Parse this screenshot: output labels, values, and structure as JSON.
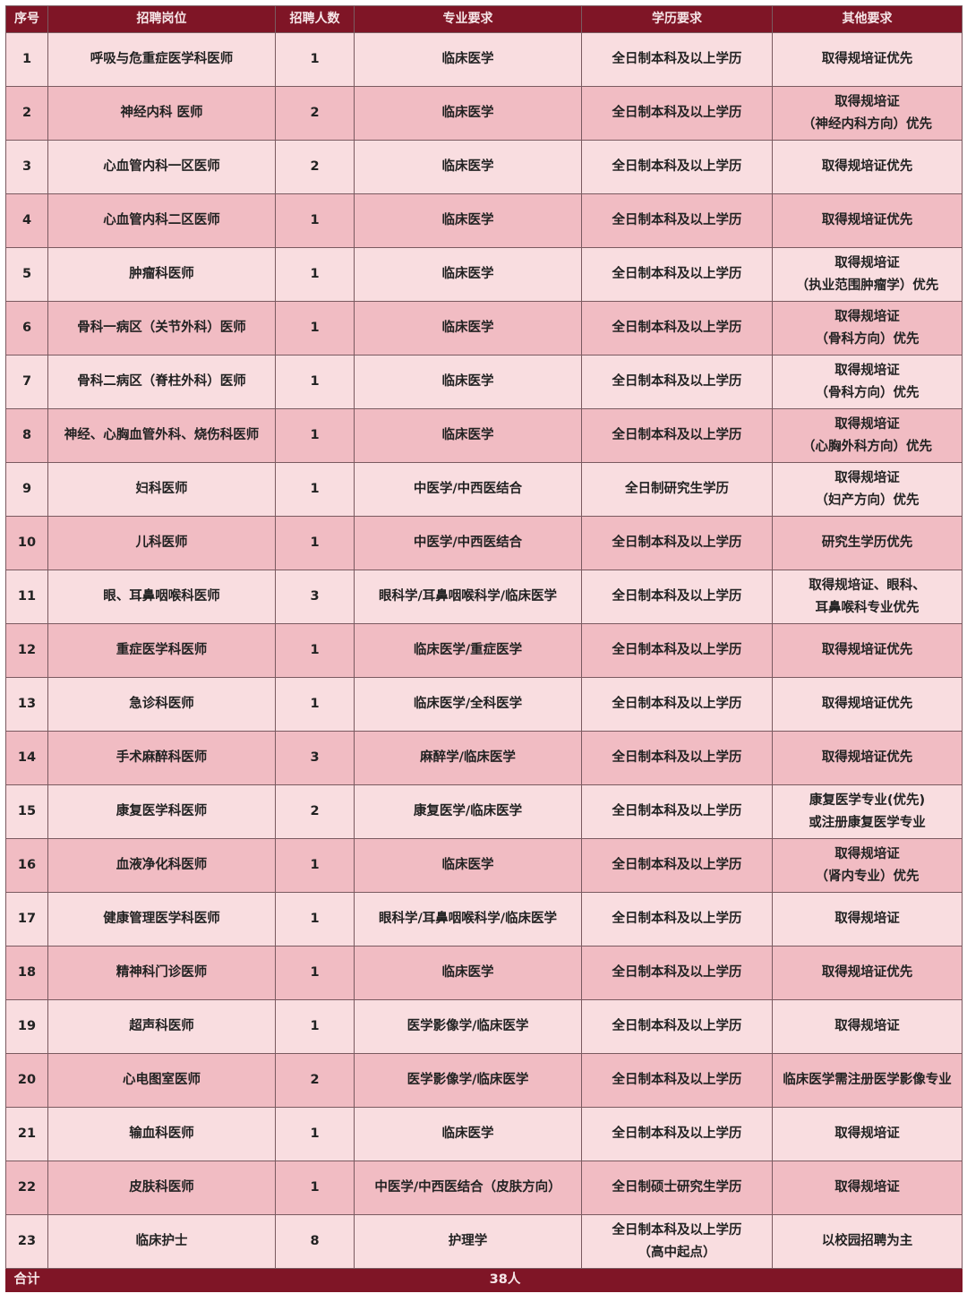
{
  "headers": [
    "序号",
    "招聘岗位",
    "招聘人数",
    "专业要求",
    "学历要求",
    "其他要求"
  ],
  "rows": [
    [
      "1",
      "呼吸与危重症医学科医师",
      "1",
      "临床医学",
      "全日制本科及以上学历",
      "取得规培证优先"
    ],
    [
      "2",
      "神经内科 医师",
      "2",
      "临床医学",
      "全日制本科及以上学历",
      "取得规培证\n（神经内科方向）优先"
    ],
    [
      "3",
      "心血管内科一区医师",
      "2",
      "临床医学",
      "全日制本科及以上学历",
      "取得规培证优先"
    ],
    [
      "4",
      "心血管内科二区医师",
      "1",
      "临床医学",
      "全日制本科及以上学历",
      "取得规培证优先"
    ],
    [
      "5",
      "肿瘤科医师",
      "1",
      "临床医学",
      "全日制本科及以上学历",
      "取得规培证\n（执业范围肿瘤学）优先"
    ],
    [
      "6",
      "骨科一病区（关节外科）医师",
      "1",
      "临床医学",
      "全日制本科及以上学历",
      "取得规培证\n（骨科方向）优先"
    ],
    [
      "7",
      "骨科二病区（脊柱外科）医师",
      "1",
      "临床医学",
      "全日制本科及以上学历",
      "取得规培证\n（骨科方向）优先"
    ],
    [
      "8",
      "神经、心胸血管外科、烧伤科医师",
      "1",
      "临床医学",
      "全日制本科及以上学历",
      "取得规培证\n（心胸外科方向）优先"
    ],
    [
      "9",
      "妇科医师",
      "1",
      "中医学/中西医结合",
      "全日制研究生学历",
      "取得规培证\n（妇产方向）优先"
    ],
    [
      "10",
      "儿科医师",
      "1",
      "中医学/中西医结合",
      "全日制本科及以上学历",
      "研究生学历优先"
    ],
    [
      "11",
      "眼、耳鼻咽喉科医师",
      "3",
      "眼科学/耳鼻咽喉科学/临床医学",
      "全日制本科及以上学历",
      "取得规培证、眼科、\n耳鼻喉科专业优先"
    ],
    [
      "12",
      "重症医学科医师",
      "1",
      "临床医学/重症医学",
      "全日制本科及以上学历",
      "取得规培证优先"
    ],
    [
      "13",
      "急诊科医师",
      "1",
      "临床医学/全科医学",
      "全日制本科及以上学历",
      "取得规培证优先"
    ],
    [
      "14",
      "手术麻醉科医师",
      "3",
      "麻醉学/临床医学",
      "全日制本科及以上学历",
      "取得规培证优先"
    ],
    [
      "15",
      "康复医学科医师",
      "2",
      "康复医学/临床医学",
      "全日制本科及以上学历",
      "康复医学专业(优先)\n或注册康复医学专业"
    ],
    [
      "16",
      "血液净化科医师",
      "1",
      "临床医学",
      "全日制本科及以上学历",
      "取得规培证\n（肾内专业）优先"
    ],
    [
      "17",
      "健康管理医学科医师",
      "1",
      "眼科学/耳鼻咽喉科学/临床医学",
      "全日制本科及以上学历",
      "取得规培证"
    ],
    [
      "18",
      "精神科门诊医师",
      "1",
      "临床医学",
      "全日制本科及以上学历",
      "取得规培证优先"
    ],
    [
      "19",
      "超声科医师",
      "1",
      "医学影像学/临床医学",
      "全日制本科及以上学历",
      "取得规培证"
    ],
    [
      "20",
      "心电图室医师",
      "2",
      "医学影像学/临床医学",
      "全日制本科及以上学历",
      "临床医学需注册医学影像专业"
    ],
    [
      "21",
      "输血科医师",
      "1",
      "临床医学",
      "全日制本科及以上学历",
      "取得规培证"
    ],
    [
      "22",
      "皮肤科医师",
      "1",
      "中医学/中西医结合（皮肤方向）",
      "全日制硕士研究生学历",
      "取得规培证"
    ],
    [
      "23",
      "临床护士",
      "8",
      "护理学",
      "全日制本科及以上学历\n（高中起点）",
      "以校园招聘为主"
    ]
  ],
  "total": {
    "label": "合计",
    "value": "38人"
  },
  "colors": {
    "header": "#7f1526",
    "row_light": "#f9dde0",
    "row_dark": "#f1bcc3"
  }
}
